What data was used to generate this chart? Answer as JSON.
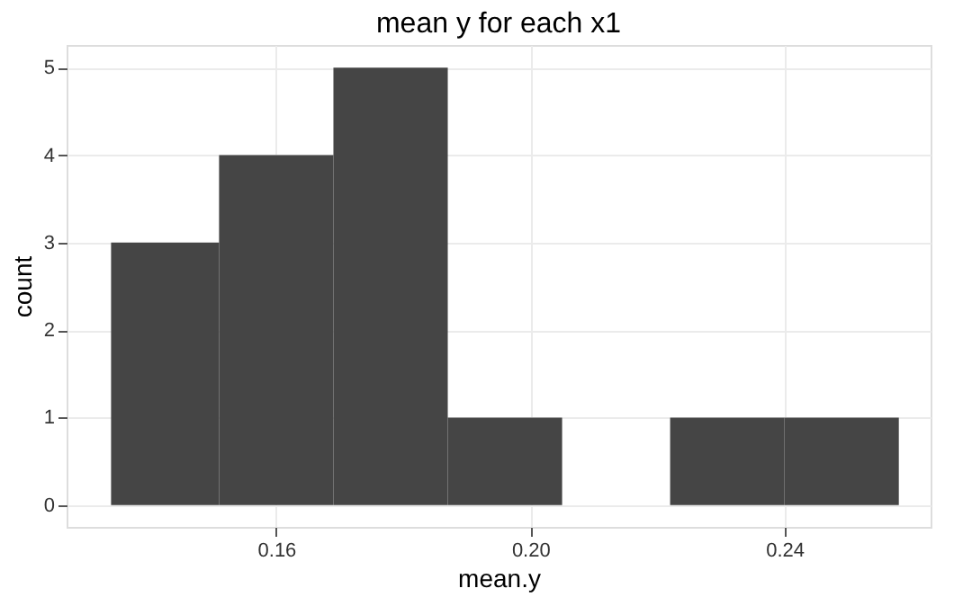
{
  "chart_data": {
    "type": "histogram",
    "title": "mean y for each x1",
    "xlabel": "mean.y",
    "ylabel": "count",
    "bins": [
      0.134,
      0.151,
      0.169,
      0.187,
      0.205,
      0.222,
      0.24,
      0.258
    ],
    "values": [
      3,
      4,
      5,
      1,
      0,
      1,
      1
    ],
    "color": "#454545",
    "xlim": [
      0.127,
      0.263
    ],
    "xticks": [
      {
        "value": 0.16,
        "label": "0.16"
      },
      {
        "value": 0.2,
        "label": "0.20"
      },
      {
        "value": 0.24,
        "label": "0.24"
      }
    ],
    "ylim": [
      -0.25,
      5.26
    ],
    "yticks": [
      0,
      1,
      2,
      3,
      4,
      5
    ],
    "grid": true
  }
}
